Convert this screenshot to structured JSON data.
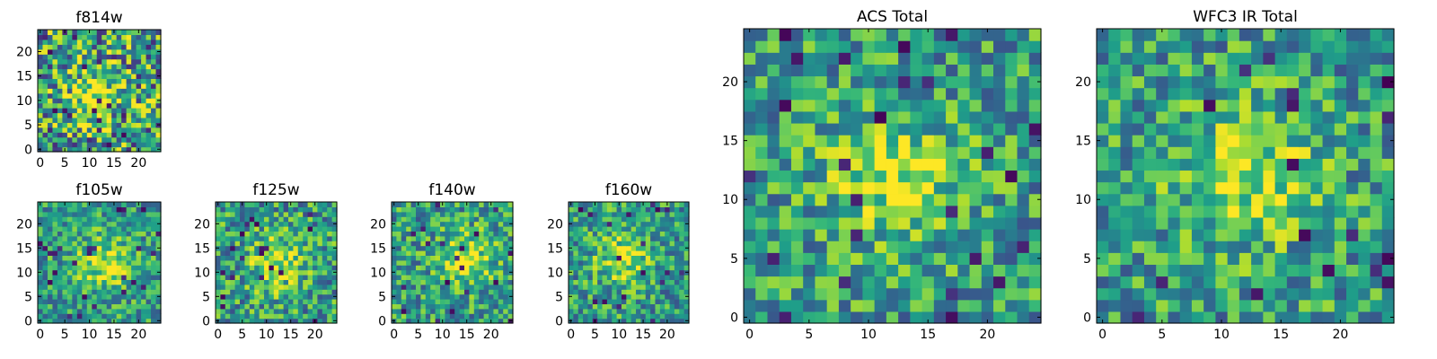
{
  "chart_data": [
    {
      "type": "heatmap",
      "title": "f814w",
      "xlabel": "",
      "ylabel": "",
      "xlim": [
        -0.5,
        24.5
      ],
      "ylim": [
        -0.5,
        24.5
      ],
      "xticks": [
        0,
        5,
        10,
        15,
        20
      ],
      "yticks": [
        0,
        5,
        10,
        15,
        20
      ],
      "colormap": "viridis",
      "noise": 0.45,
      "peak": [
        11,
        11
      ],
      "seed": 11,
      "grid": false
    },
    {
      "type": "heatmap",
      "title": "f105w",
      "xlabel": "",
      "ylabel": "",
      "xlim": [
        -0.5,
        24.5
      ],
      "ylim": [
        -0.5,
        24.5
      ],
      "xticks": [
        0,
        5,
        10,
        15,
        20
      ],
      "yticks": [
        0,
        5,
        10,
        15,
        20
      ],
      "colormap": "viridis",
      "noise": 0.28,
      "peak": [
        13,
        12
      ],
      "seed": 23,
      "grid": false
    },
    {
      "type": "heatmap",
      "title": "f125w",
      "xlabel": "",
      "ylabel": "",
      "xlim": [
        -0.5,
        24.5
      ],
      "ylim": [
        -0.5,
        24.5
      ],
      "xticks": [
        0,
        5,
        10,
        15,
        20
      ],
      "yticks": [
        0,
        5,
        10,
        15,
        20
      ],
      "colormap": "viridis",
      "noise": 0.32,
      "peak": [
        12,
        12
      ],
      "seed": 37,
      "grid": false
    },
    {
      "type": "heatmap",
      "title": "f140w",
      "xlabel": "",
      "ylabel": "",
      "xlim": [
        -0.5,
        24.5
      ],
      "ylim": [
        -0.5,
        24.5
      ],
      "xticks": [
        0,
        5,
        10,
        15,
        20
      ],
      "yticks": [
        0,
        5,
        10,
        15,
        20
      ],
      "colormap": "viridis",
      "noise": 0.3,
      "peak": [
        15,
        13
      ],
      "seed": 41,
      "grid": false
    },
    {
      "type": "heatmap",
      "title": "f160w",
      "xlabel": "",
      "ylabel": "",
      "xlim": [
        -0.5,
        24.5
      ],
      "ylim": [
        -0.5,
        24.5
      ],
      "xticks": [
        0,
        5,
        10,
        15,
        20
      ],
      "yticks": [
        0,
        5,
        10,
        15,
        20
      ],
      "colormap": "viridis",
      "noise": 0.3,
      "peak": [
        11,
        13
      ],
      "seed": 53,
      "grid": false
    },
    {
      "type": "heatmap",
      "title": "ACS Total",
      "xlabel": "",
      "ylabel": "",
      "xlim": [
        -0.5,
        24.5
      ],
      "ylim": [
        -0.5,
        24.5
      ],
      "xticks": [
        0,
        5,
        10,
        15,
        20
      ],
      "yticks": [
        0,
        5,
        10,
        15,
        20
      ],
      "colormap": "viridis",
      "noise": 0.3,
      "peak": [
        12,
        12
      ],
      "seed": 67,
      "grid": false
    },
    {
      "type": "heatmap",
      "title": "WFC3 IR Total",
      "xlabel": "",
      "ylabel": "",
      "xlim": [
        -0.5,
        24.5
      ],
      "ylim": [
        -0.5,
        24.5
      ],
      "xticks": [
        0,
        5,
        10,
        15,
        20
      ],
      "yticks": [
        0,
        5,
        10,
        15,
        20
      ],
      "colormap": "viridis",
      "noise": 0.3,
      "peak": [
        12,
        12
      ],
      "seed": 79,
      "grid": false
    }
  ]
}
